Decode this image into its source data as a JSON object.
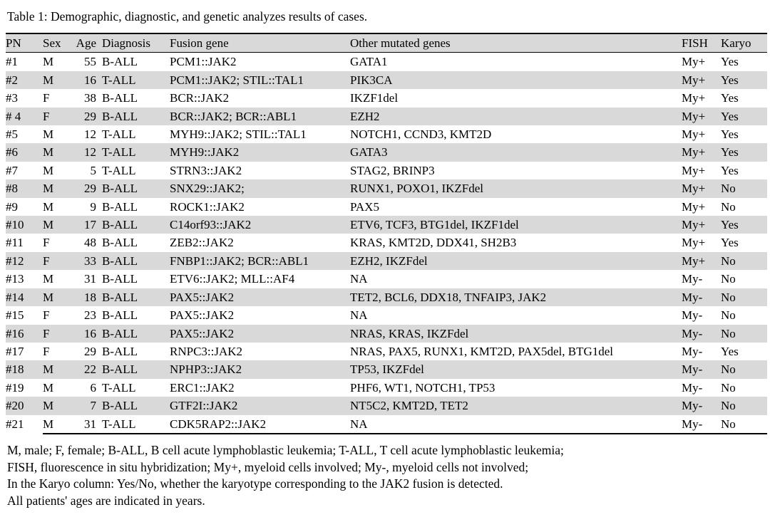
{
  "title": "Table 1: Demographic, diagnostic, and genetic analyzes results of cases.",
  "table": {
    "columns": [
      "PN",
      "Sex",
      "Age",
      "Diagnosis",
      "Fusion gene",
      "Other mutated genes",
      "FISH",
      "Karyo"
    ],
    "rows": [
      [
        "#1",
        "M",
        "55",
        "B-ALL",
        "PCM1::JAK2",
        "GATA1",
        "My+",
        "Yes"
      ],
      [
        "#2",
        "M",
        "16",
        "T-ALL",
        "PCM1::JAK2; STIL::TAL1",
        "PIK3CA",
        "My+",
        "Yes"
      ],
      [
        "#3",
        "F",
        "38",
        "B-ALL",
        "BCR::JAK2",
        "IKZF1del",
        "My+",
        "Yes"
      ],
      [
        "# 4",
        "F",
        "29",
        "B-ALL",
        "BCR::JAK2; BCR::ABL1",
        "EZH2",
        "My+",
        "Yes"
      ],
      [
        "#5",
        "M",
        "12",
        "T-ALL",
        "MYH9::JAK2; STIL::TAL1",
        "NOTCH1, CCND3, KMT2D",
        "My+",
        "Yes"
      ],
      [
        "#6",
        "M",
        "12",
        "T-ALL",
        "MYH9::JAK2",
        "GATA3",
        "My+",
        "Yes"
      ],
      [
        "#7",
        "M",
        "5",
        "T-ALL",
        "STRN3::JAK2",
        "STAG2, BRINP3",
        "My+",
        "Yes"
      ],
      [
        "#8",
        "M",
        "29",
        "B-ALL",
        "SNX29::JAK2;",
        "RUNX1, POXO1, IKZFdel",
        "My+",
        "No"
      ],
      [
        "#9",
        "M",
        "9",
        "B-ALL",
        "ROCK1::JAK2",
        "PAX5",
        "My+",
        "No"
      ],
      [
        "#10",
        "M",
        "17",
        "B-ALL",
        "C14orf93::JAK2",
        "ETV6, TCF3, BTG1del, IKZF1del",
        "My+",
        "Yes"
      ],
      [
        "#11",
        "F",
        "48",
        "B-ALL",
        "ZEB2::JAK2",
        "KRAS, KMT2D, DDX41, SH2B3",
        "My+",
        "Yes"
      ],
      [
        "#12",
        "F",
        "33",
        "B-ALL",
        "FNBP1::JAK2; BCR::ABL1",
        "EZH2, IKZFdel",
        "My+",
        "No"
      ],
      [
        "#13",
        "M",
        "31",
        "B-ALL",
        "ETV6::JAK2; MLL::AF4",
        "NA",
        "My-",
        "No"
      ],
      [
        "#14",
        "M",
        "18",
        "B-ALL",
        "PAX5::JAK2",
        "TET2, BCL6, DDX18, TNFAIP3, JAK2",
        "My-",
        "No"
      ],
      [
        "#15",
        "F",
        "23",
        "B-ALL",
        "PAX5::JAK2",
        "NA",
        "My-",
        "No"
      ],
      [
        "#16",
        "F",
        "16",
        "B-ALL",
        "PAX5::JAK2",
        "NRAS, KRAS, IKZFdel",
        "My-",
        "No"
      ],
      [
        "#17",
        "F",
        "29",
        "B-ALL",
        "RNPC3::JAK2",
        "NRAS, PAX5, RUNX1, KMT2D, PAX5del, BTG1del",
        "My-",
        "Yes"
      ],
      [
        "#18",
        "M",
        "22",
        "B-ALL",
        "NPHP3::JAK2",
        "TP53, IKZFdel",
        "My-",
        "No"
      ],
      [
        "#19",
        "M",
        "6",
        "T-ALL",
        "ERC1::JAK2",
        "PHF6, WT1, NOTCH1, TP53",
        "My-",
        "No"
      ],
      [
        "#20",
        "M",
        "7",
        "B-ALL",
        "GTF2I::JAK2",
        "NT5C2, KMT2D, TET2",
        "My-",
        "No"
      ],
      [
        "#21",
        "M",
        "31",
        "T-ALL",
        "CDK5RAP2::JAK2",
        "NA",
        "My-",
        "No"
      ]
    ]
  },
  "footnotes": [
    "M, male; F, female; B-ALL, B cell acute lymphoblastic leukemia; T-ALL, T cell acute lymphoblastic leukemia;",
    "FISH, fluorescence in situ hybridization; My+, myeloid cells involved; My-, myeloid cells not involved;",
    "In the Karyo column: Yes/No, whether the karyotype corresponding to the JAK2 fusion is detected.",
    "All patients' ages are indicated in years."
  ],
  "colors": {
    "row_shade": "#d9d9d9",
    "rule": "#000000"
  }
}
